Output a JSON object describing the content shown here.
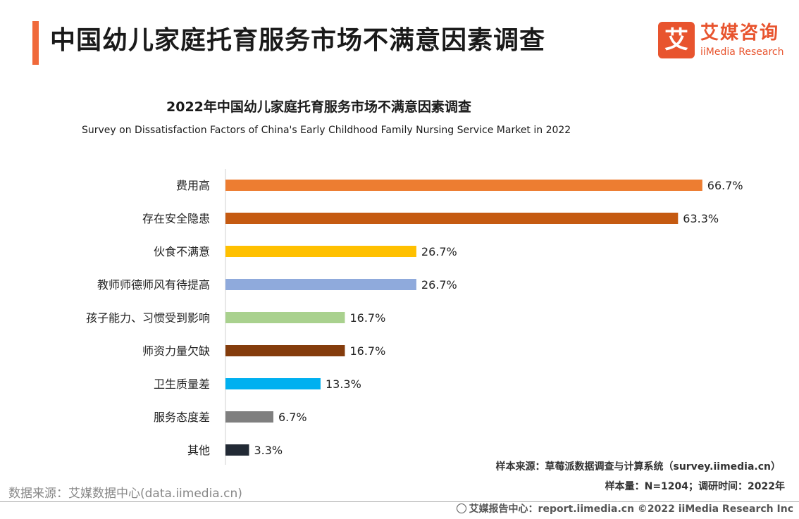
{
  "header": {
    "title": "中国幼儿家庭托育服务市场不满意因素调查",
    "logo_mark": "艾",
    "logo_cn": "艾媒咨询",
    "logo_en": "iiMedia Research"
  },
  "chart_data": {
    "type": "bar",
    "orientation": "horizontal",
    "title": "2022年中国幼儿家庭托育服务市场不满意因素调查",
    "subtitle": "Survey on Dissatisfaction Factors of China's Early Childhood Family Nursing Service Market in 2022",
    "categories": [
      "费用高",
      "存在安全隐患",
      "伙食不满意",
      "教师师德师风有待提高",
      "孩子能力、习惯受到影响",
      "师资力量欠缺",
      "卫生质量差",
      "服务态度差",
      "其他"
    ],
    "values": [
      66.7,
      63.3,
      26.7,
      26.7,
      16.7,
      16.7,
      13.3,
      6.7,
      3.3
    ],
    "value_labels": [
      "66.7%",
      "63.3%",
      "26.7%",
      "26.7%",
      "16.7%",
      "16.7%",
      "13.3%",
      "6.7%",
      "3.3%"
    ],
    "colors": [
      "#ed7d31",
      "#c55a11",
      "#ffc000",
      "#8faadc",
      "#a9d18e",
      "#843c0c",
      "#00b0f0",
      "#7f7f7f",
      "#222a35"
    ],
    "unit": "%",
    "xlim": [
      0,
      68
    ],
    "grid": false,
    "legend": "none"
  },
  "sources": {
    "sample_source": "样本来源：草莓派数据调查与计算系统（survey.iimedia.cn）",
    "sample_size": "样本量：N=1204；调研时间：2022年",
    "data_source": "数据来源：艾媒数据中心(data.iimedia.cn)"
  },
  "footer": {
    "text": "艾媒报告中心：report.iimedia.cn ©2022 iiMedia Research Inc"
  }
}
